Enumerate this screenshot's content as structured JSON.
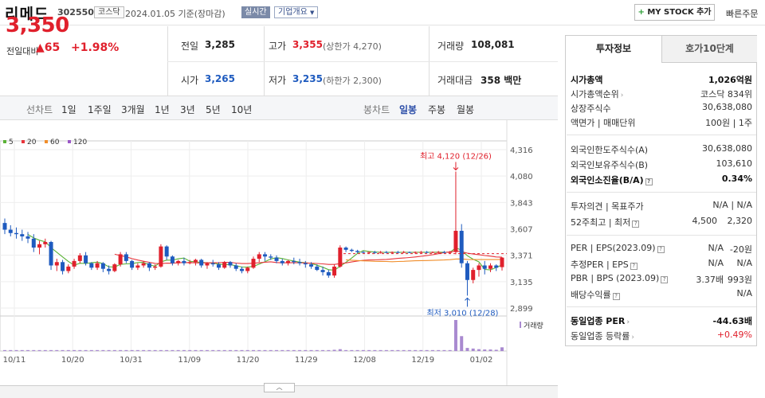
{
  "header": {
    "company_name": "리메드",
    "code": "302550",
    "market": "코스닥",
    "date_text": "2024.01.05  기준(장마감)",
    "realtime": "실시간",
    "overview": "기업개요",
    "mystock": "MY STOCK 추가",
    "quick_order": "빠른주문"
  },
  "price": {
    "current": "3,350",
    "diff_label": "전일대비",
    "diff": "65",
    "pct": "+1.98%"
  },
  "quotes": {
    "prev_label": "전일",
    "prev": "3,285",
    "high_label": "고가",
    "high": "3,355",
    "upper_limit": "(상한가 4,270)",
    "volume_label": "거래량",
    "volume": "108,081",
    "open_label": "시가",
    "open": "3,265",
    "low_label": "저가",
    "low": "3,235",
    "lower_limit": "(하한가 2,300)",
    "amount_label": "거래대금",
    "amount": "358 백만"
  },
  "chart_tabs": {
    "line_label": "선차트",
    "periods": [
      "1일",
      "1주일",
      "3개월",
      "1년",
      "3년",
      "5년",
      "10년"
    ],
    "candle_label": "봉차트",
    "candle_periods": [
      "일봉",
      "주봉",
      "월봉"
    ],
    "candle_selected": "일봉"
  },
  "chart_data": {
    "type": "candlestick",
    "legend": [
      {
        "label": "5",
        "color": "#5ab236"
      },
      {
        "label": "20",
        "color": "#e8343a"
      },
      {
        "label": "60",
        "color": "#f08d2a"
      },
      {
        "label": "120",
        "color": "#9a57c7"
      }
    ],
    "y_ticks": [
      "4,316",
      "4,080",
      "3,843",
      "3,607",
      "3,371",
      "3,135",
      "2,899"
    ],
    "x_ticks": [
      "10/11",
      "10/20",
      "10/31",
      "11/09",
      "11/20",
      "11/29",
      "12/08",
      "12/19",
      "01/02"
    ],
    "high_annotation": "최고 4,120 (12/26)",
    "low_annotation": "최저 3,010 (12/28)",
    "volume_label": "거래량",
    "ylim": [
      2899,
      4316
    ],
    "candles": [
      [
        3660,
        3700,
        3560,
        3600
      ],
      [
        3600,
        3640,
        3540,
        3570
      ],
      [
        3570,
        3620,
        3520,
        3560
      ],
      [
        3560,
        3600,
        3500,
        3540
      ],
      [
        3540,
        3580,
        3480,
        3520
      ],
      [
        3520,
        3560,
        3400,
        3440
      ],
      [
        3440,
        3500,
        3380,
        3470
      ],
      [
        3470,
        3520,
        3440,
        3490
      ],
      [
        3490,
        3500,
        3240,
        3280
      ],
      [
        3280,
        3340,
        3230,
        3310
      ],
      [
        3310,
        3330,
        3200,
        3230
      ],
      [
        3230,
        3290,
        3210,
        3270
      ],
      [
        3270,
        3340,
        3250,
        3320
      ],
      [
        3320,
        3390,
        3300,
        3370
      ],
      [
        3370,
        3400,
        3280,
        3300
      ],
      [
        3300,
        3310,
        3240,
        3260
      ],
      [
        3260,
        3320,
        3240,
        3300
      ],
      [
        3300,
        3310,
        3220,
        3250
      ],
      [
        3250,
        3280,
        3200,
        3230
      ],
      [
        3230,
        3300,
        3220,
        3290
      ],
      [
        3290,
        3400,
        3270,
        3380
      ],
      [
        3380,
        3400,
        3300,
        3320
      ],
      [
        3320,
        3330,
        3240,
        3260
      ],
      [
        3260,
        3300,
        3240,
        3280
      ],
      [
        3280,
        3320,
        3260,
        3300
      ],
      [
        3300,
        3310,
        3230,
        3260
      ],
      [
        3260,
        3290,
        3240,
        3270
      ],
      [
        3270,
        3470,
        3260,
        3450
      ],
      [
        3450,
        3460,
        3330,
        3360
      ],
      [
        3360,
        3370,
        3280,
        3300
      ],
      [
        3300,
        3330,
        3280,
        3320
      ],
      [
        3320,
        3350,
        3280,
        3300
      ],
      [
        3300,
        3330,
        3290,
        3310
      ],
      [
        3310,
        3340,
        3280,
        3330
      ],
      [
        3330,
        3340,
        3260,
        3280
      ],
      [
        3280,
        3310,
        3250,
        3300
      ],
      [
        3300,
        3330,
        3270,
        3290
      ],
      [
        3290,
        3310,
        3240,
        3260
      ],
      [
        3260,
        3320,
        3250,
        3310
      ],
      [
        3310,
        3320,
        3260,
        3280
      ],
      [
        3280,
        3300,
        3230,
        3250
      ],
      [
        3250,
        3270,
        3210,
        3230
      ],
      [
        3230,
        3270,
        3210,
        3260
      ],
      [
        3260,
        3360,
        3250,
        3340
      ],
      [
        3340,
        3400,
        3310,
        3380
      ],
      [
        3380,
        3400,
        3320,
        3360
      ],
      [
        3360,
        3380,
        3330,
        3350
      ],
      [
        3350,
        3370,
        3300,
        3320
      ],
      [
        3320,
        3340,
        3280,
        3300
      ],
      [
        3300,
        3330,
        3280,
        3320
      ],
      [
        3320,
        3350,
        3290,
        3310
      ],
      [
        3310,
        3340,
        3280,
        3300
      ],
      [
        3300,
        3320,
        3260,
        3290
      ],
      [
        3290,
        3310,
        3250,
        3270
      ],
      [
        3270,
        3290,
        3230,
        3240
      ],
      [
        3240,
        3270,
        3190,
        3220
      ],
      [
        3220,
        3240,
        3170,
        3190
      ],
      [
        3190,
        3290,
        3170,
        3270
      ],
      [
        3270,
        3460,
        3260,
        3440
      ],
      [
        3440,
        3450,
        3400,
        3420
      ],
      [
        3420,
        3430,
        3400,
        3410
      ],
      [
        3410,
        3420,
        3390,
        3400
      ],
      [
        3400,
        3410,
        3390,
        3395
      ],
      [
        3395,
        3405,
        3385,
        3400
      ],
      [
        3400,
        3410,
        3385,
        3395
      ],
      [
        3395,
        3410,
        3385,
        3400
      ],
      [
        3400,
        3410,
        3390,
        3395
      ],
      [
        3395,
        3405,
        3385,
        3400
      ],
      [
        3400,
        3410,
        3390,
        3395
      ],
      [
        3395,
        3410,
        3390,
        3400
      ],
      [
        3400,
        3405,
        3390,
        3395
      ],
      [
        3395,
        3405,
        3385,
        3400
      ],
      [
        3400,
        3410,
        3390,
        3400
      ],
      [
        3400,
        3410,
        3390,
        3395
      ],
      [
        3395,
        3405,
        3390,
        3400
      ],
      [
        3400,
        3410,
        3390,
        3400
      ],
      [
        3400,
        3410,
        3390,
        3395
      ],
      [
        3395,
        3410,
        3385,
        3400
      ],
      [
        3400,
        4120,
        3380,
        3590
      ],
      [
        3590,
        3650,
        3260,
        3300
      ],
      [
        3300,
        3320,
        3010,
        3150
      ],
      [
        3150,
        3260,
        3120,
        3240
      ],
      [
        3240,
        3300,
        3180,
        3280
      ],
      [
        3280,
        3320,
        3200,
        3250
      ],
      [
        3250,
        3300,
        3220,
        3280
      ],
      [
        3280,
        3290,
        3230,
        3260
      ],
      [
        3265,
        3355,
        3235,
        3350
      ]
    ],
    "volumes": [
      3,
      3,
      3,
      3,
      3,
      3,
      3,
      3,
      3,
      3,
      3,
      3,
      3,
      3,
      3,
      3,
      3,
      3,
      3,
      3,
      3,
      3,
      3,
      3,
      3,
      3,
      3,
      3,
      3,
      3,
      3,
      3,
      3,
      3,
      3,
      3,
      3,
      3,
      3,
      3,
      3,
      3,
      3,
      3,
      3,
      3,
      3,
      3,
      3,
      3,
      3,
      3,
      3,
      3,
      3,
      3,
      3,
      4,
      6,
      3,
      3,
      3,
      3,
      3,
      3,
      3,
      3,
      3,
      3,
      3,
      3,
      3,
      3,
      3,
      3,
      3,
      3,
      3,
      100,
      48,
      10,
      8,
      6,
      5,
      5,
      4,
      12
    ]
  },
  "info": {
    "tab_active": "투자정보",
    "tab_inactive": "호가10단계",
    "market_cap_label": "시가총액",
    "market_cap": "1,026억원",
    "rank_label": "시가총액순위",
    "rank": "코스닥 834위",
    "shares_label": "상장주식수",
    "shares": "30,638,080",
    "face_label": "액면가 | 매매단위",
    "face": "100원 | 1주",
    "foreign_limit_label": "외국인한도주식수(A)",
    "foreign_limit": "30,638,080",
    "foreign_hold_label": "외국인보유주식수(B)",
    "foreign_hold": "103,610",
    "foreign_rate_label": "외국인소진율(B/A)",
    "foreign_rate": "0.34%",
    "opinion_label": "투자의견 | 목표주가",
    "opinion": "N/A | N/A",
    "week52_label": "52주최고 | 최저",
    "week52_high": "4,500",
    "week52_low": "2,320",
    "per_label": "PER | EPS(2023.09)",
    "per": "N/A",
    "eps": "-20원",
    "est_per_label": "추정PER | EPS",
    "est_per": "N/A",
    "est_eps": "N/A",
    "pbr_label": "PBR | BPS (2023.09)",
    "pbr": "3.37배",
    "bps": "993원",
    "dividend_label": "배당수익률",
    "dividend": "N/A",
    "sector_per_label": "동일업종 PER",
    "sector_per": "-44.63배",
    "sector_rate_label": "동일업종 등락률",
    "sector_rate": "+0.49%"
  }
}
